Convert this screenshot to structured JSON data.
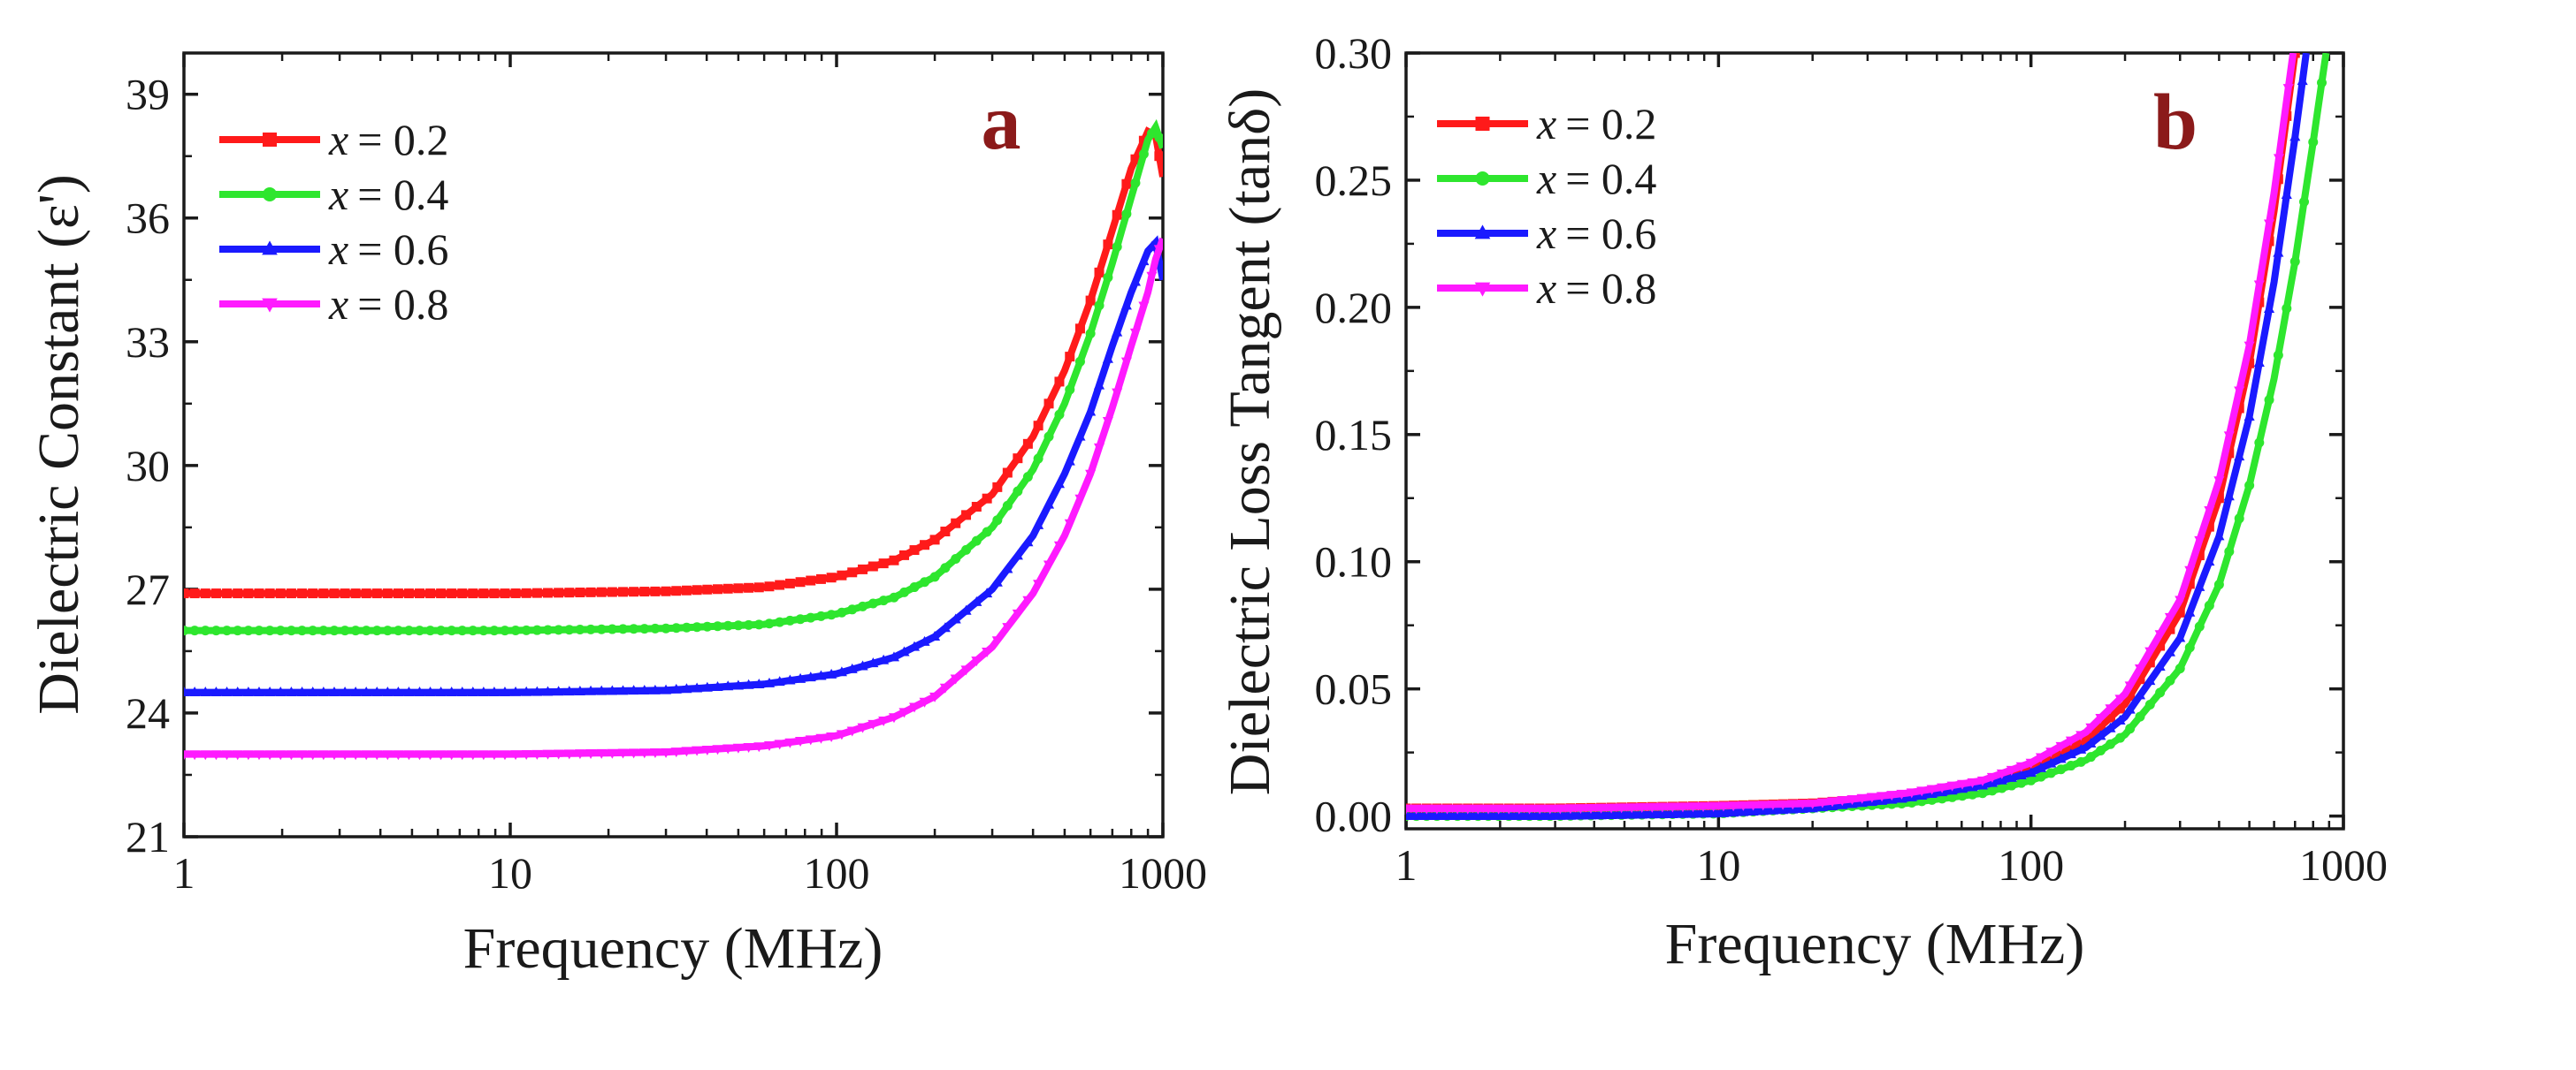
{
  "colors": {
    "red": "#ff1a1a",
    "green": "#2ee62e",
    "blue": "#1a1aff",
    "magenta": "#ff1aff",
    "letter": "#8b1a1a",
    "axis": "#1a1a1a"
  },
  "chart_data": [
    {
      "type": "line",
      "panel_letter": "a",
      "xlabel": "Frequency (MHz)",
      "ylabel": "Dielectric Constant (ε')",
      "x_scale": "log",
      "xlim": [
        1,
        1000
      ],
      "ylim": [
        21,
        40
      ],
      "xticks": [
        1,
        10,
        100,
        1000
      ],
      "xtick_labels": [
        "1",
        "10",
        "100",
        "1000"
      ],
      "yticks": [
        21,
        24,
        27,
        30,
        33,
        36,
        39
      ],
      "ytick_labels": [
        "21",
        "24",
        "27",
        "30",
        "33",
        "36",
        "39"
      ],
      "legend_position": "top-left",
      "legend": {
        "var": "x",
        "entries": [
          "= 0.2",
          "= 0.4",
          "= 0.6",
          "= 0.8"
        ],
        "marker_shapes": [
          "square",
          "circle",
          "triangle-up",
          "triangle-down"
        ]
      },
      "series": [
        {
          "name": "x = 0.2",
          "color": "#ff1a1a",
          "marker": "square",
          "x": [
            1,
            3,
            10,
            30,
            60,
            100,
            150,
            200,
            300,
            400,
            500,
            600,
            700,
            800,
            900,
            950,
            1000
          ],
          "y": [
            26.9,
            26.9,
            26.9,
            26.95,
            27.05,
            27.3,
            27.7,
            28.2,
            29.3,
            30.7,
            32.3,
            34.0,
            35.7,
            37.2,
            38.1,
            38.0,
            37.0
          ]
        },
        {
          "name": "x = 0.4",
          "color": "#2ee62e",
          "marker": "circle",
          "x": [
            1,
            3,
            10,
            30,
            60,
            100,
            150,
            200,
            300,
            400,
            500,
            600,
            700,
            800,
            900,
            950,
            1000
          ],
          "y": [
            26.0,
            26.0,
            26.0,
            26.05,
            26.15,
            26.4,
            26.8,
            27.3,
            28.5,
            29.9,
            31.5,
            33.2,
            34.9,
            36.5,
            37.9,
            38.2,
            37.7
          ]
        },
        {
          "name": "x = 0.6",
          "color": "#1a1aff",
          "marker": "triangle-up",
          "x": [
            1,
            3,
            10,
            30,
            60,
            100,
            150,
            200,
            300,
            400,
            500,
            600,
            700,
            800,
            900,
            950,
            1000
          ],
          "y": [
            24.5,
            24.5,
            24.5,
            24.55,
            24.7,
            24.95,
            25.35,
            25.85,
            27.0,
            28.3,
            29.8,
            31.3,
            32.9,
            34.2,
            35.2,
            35.4,
            34.5
          ]
        },
        {
          "name": "x = 0.8",
          "color": "#ff1aff",
          "marker": "triangle-down",
          "x": [
            1,
            3,
            10,
            30,
            60,
            100,
            150,
            200,
            300,
            400,
            500,
            600,
            700,
            800,
            900,
            950,
            1000
          ],
          "y": [
            23.0,
            23.0,
            23.0,
            23.05,
            23.2,
            23.45,
            23.9,
            24.4,
            25.6,
            26.9,
            28.3,
            29.8,
            31.4,
            32.9,
            34.2,
            35.0,
            35.5
          ]
        }
      ]
    },
    {
      "type": "line",
      "panel_letter": "b",
      "xlabel": "Frequency (MHz)",
      "ylabel": "Dielectric Loss Tangent (tanδ)",
      "x_scale": "log",
      "xlim": [
        1,
        1000
      ],
      "ylim": [
        -0.005,
        0.3
      ],
      "xticks": [
        1,
        10,
        100,
        1000
      ],
      "xtick_labels": [
        "1",
        "10",
        "100",
        "1000"
      ],
      "yticks": [
        0.0,
        0.05,
        0.1,
        0.15,
        0.2,
        0.25,
        0.3
      ],
      "ytick_labels": [
        "0.00",
        "0.05",
        "0.10",
        "0.15",
        "0.20",
        "0.25",
        "0.30"
      ],
      "legend_position": "top-left",
      "legend": {
        "var": "x",
        "entries": [
          "= 0.2",
          "= 0.4",
          "= 0.6",
          "= 0.8"
        ],
        "marker_shapes": [
          "square",
          "circle",
          "triangle-up",
          "triangle-down"
        ]
      },
      "series": [
        {
          "name": "x = 0.2",
          "color": "#ff1a1a",
          "marker": "square",
          "x": [
            1,
            3,
            10,
            20,
            40,
            70,
            100,
            150,
            200,
            300,
            400,
            500,
            600,
            700
          ],
          "y": [
            0.003,
            0.003,
            0.004,
            0.005,
            0.008,
            0.013,
            0.019,
            0.03,
            0.044,
            0.08,
            0.125,
            0.178,
            0.238,
            0.3
          ]
        },
        {
          "name": "x = 0.4",
          "color": "#2ee62e",
          "marker": "circle",
          "x": [
            1,
            3,
            10,
            20,
            40,
            70,
            100,
            150,
            200,
            300,
            400,
            500,
            600,
            700,
            800,
            880
          ],
          "y": [
            0.0,
            0.0,
            0.001,
            0.003,
            0.005,
            0.009,
            0.014,
            0.022,
            0.032,
            0.058,
            0.091,
            0.13,
            0.172,
            0.218,
            0.265,
            0.3
          ]
        },
        {
          "name": "x = 0.6",
          "color": "#1a1aff",
          "marker": "triangle-up",
          "x": [
            1,
            3,
            10,
            20,
            40,
            70,
            100,
            150,
            200,
            300,
            400,
            500,
            600,
            700,
            760
          ],
          "y": [
            0.0,
            0.0,
            0.001,
            0.003,
            0.007,
            0.012,
            0.017,
            0.027,
            0.039,
            0.07,
            0.11,
            0.157,
            0.21,
            0.267,
            0.3
          ]
        },
        {
          "name": "x = 0.8",
          "color": "#ff1aff",
          "marker": "triangle-down",
          "x": [
            1,
            3,
            10,
            20,
            40,
            70,
            100,
            150,
            200,
            300,
            400,
            500,
            600,
            690
          ],
          "y": [
            0.003,
            0.003,
            0.004,
            0.005,
            0.009,
            0.014,
            0.021,
            0.033,
            0.048,
            0.085,
            0.132,
            0.185,
            0.245,
            0.3
          ]
        }
      ]
    }
  ]
}
